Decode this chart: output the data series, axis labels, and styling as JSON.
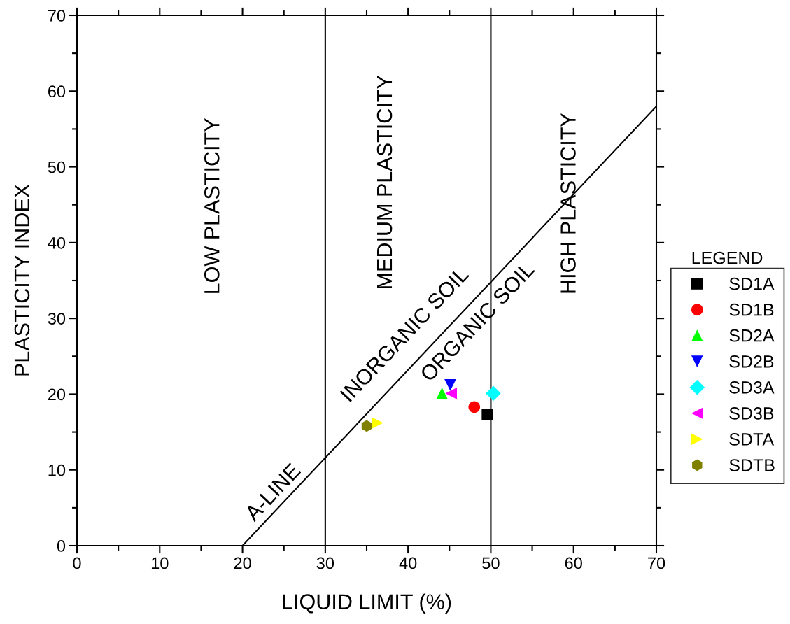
{
  "chart_data": {
    "type": "scatter",
    "xlabel": "LIQUID LIMIT (%)",
    "ylabel": "PLASTICITY INDEX",
    "legend_title": "LEGEND",
    "legend": "right",
    "xlim": [
      0,
      70
    ],
    "ylim": [
      0,
      70
    ],
    "xticks": [
      0,
      {
        "value": 5,
        "label": null
      },
      10,
      {
        "value": 15,
        "label": null
      },
      20,
      {
        "value": 25,
        "label": null
      },
      30,
      {
        "value": 35,
        "label": null
      },
      40,
      {
        "value": 45,
        "label": null
      },
      50,
      {
        "value": 55,
        "label": null
      },
      60,
      {
        "value": 65,
        "label": null
      },
      70
    ],
    "yticks": [
      0,
      {
        "value": 5,
        "label": null
      },
      10,
      {
        "value": 15,
        "label": null
      },
      20,
      {
        "value": 25,
        "label": null
      },
      30,
      {
        "value": 35,
        "label": null
      },
      40,
      {
        "value": 45,
        "label": null
      },
      50,
      {
        "value": 55,
        "label": null
      },
      60,
      {
        "value": 65,
        "label": null
      },
      70
    ],
    "grid": false,
    "series": [
      {
        "name": "SD1A",
        "color": "#000000",
        "marker": "square",
        "x": [
          49.6
        ],
        "values": [
          17.3
        ]
      },
      {
        "name": "SD1B",
        "color": "#ff0000",
        "marker": "circle",
        "x": [
          48.0
        ],
        "values": [
          18.3
        ]
      },
      {
        "name": "SD2A",
        "color": "#00ff00",
        "marker": "triangle",
        "x": [
          44.1
        ],
        "values": [
          20.1
        ]
      },
      {
        "name": "SD2B",
        "color": "#0000ff",
        "marker": "triangle_down",
        "x": [
          45.1
        ],
        "values": [
          21.2
        ]
      },
      {
        "name": "SD3A",
        "color": "#00ffff",
        "marker": "diamond",
        "x": [
          50.3
        ],
        "values": [
          20.1
        ]
      },
      {
        "name": "SD3B",
        "color": "#ff00ff",
        "marker": "triangle_left",
        "x": [
          45.2
        ],
        "values": [
          20.1
        ]
      },
      {
        "name": "SDTA",
        "color": "#ffff00",
        "marker": "triangle_right",
        "x": [
          36.3
        ],
        "values": [
          16.2
        ]
      },
      {
        "name": "SDTB",
        "color": "#808000",
        "x": [
          35.0
        ],
        "values": [
          15.8
        ]
      },
      {
        "type": "line",
        "color": "#000000",
        "x": [
          20,
          70
        ],
        "values": [
          0,
          58
        ]
      }
    ],
    "ref_lines": [
      {
        "axis": "x",
        "value": 30,
        "color": "#000000"
      },
      {
        "axis": "x",
        "value": 50,
        "color": "#000000"
      }
    ],
    "annotations": [
      "LOW PLASTICITY",
      "MEDIUM PLASTICITY",
      "HIGH PLASTICITY",
      "A-LINE",
      "INORGANIC SOIL",
      "ORGANIC SOIL"
    ]
  }
}
